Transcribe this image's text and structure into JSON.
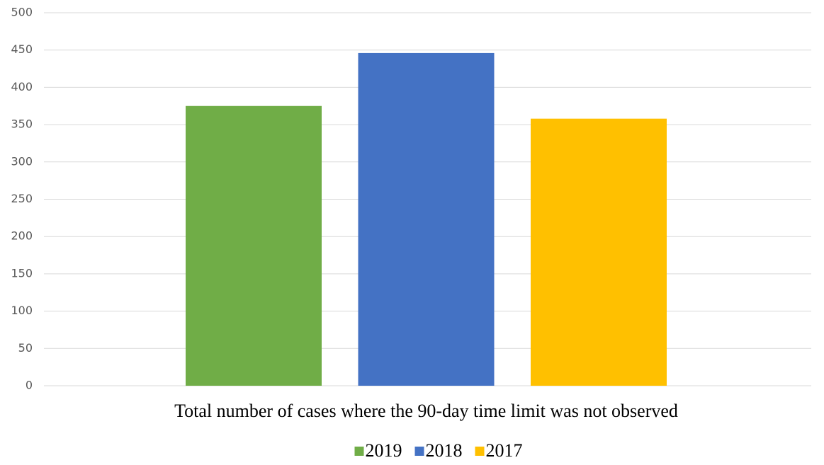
{
  "chart_data": {
    "type": "bar",
    "categories": [
      "Total number of cases where the 90-day time limit was not observed"
    ],
    "series": [
      {
        "name": "2019",
        "color": "#70ad47",
        "values": [
          375
        ]
      },
      {
        "name": "2018",
        "color": "#4472c4",
        "values": [
          446
        ]
      },
      {
        "name": "2017",
        "color": "#ffc000",
        "values": [
          358
        ]
      }
    ],
    "ylim": [
      0,
      500
    ],
    "yticks": [
      0,
      50,
      100,
      150,
      200,
      250,
      300,
      350,
      400,
      450,
      500
    ],
    "grid": true,
    "legend": "bottom"
  }
}
